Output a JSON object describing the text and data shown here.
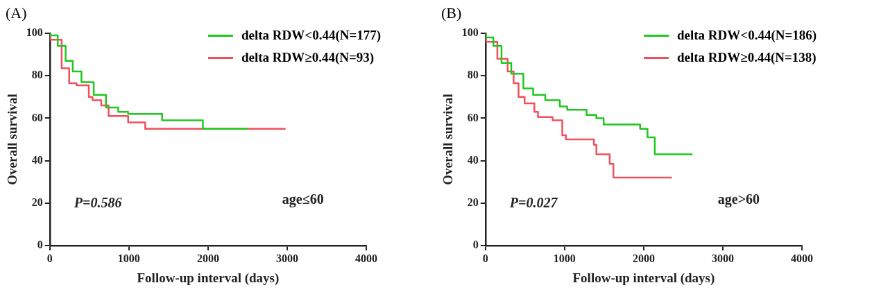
{
  "chart_data": [
    {
      "type": "step",
      "title": "(A)",
      "xlabel": "Follow-up interval (days)",
      "ylabel": "Overall survival",
      "xlim": [
        0,
        4000
      ],
      "xticks": [
        0,
        1000,
        2000,
        3000,
        4000
      ],
      "ylim": [
        0,
        100
      ],
      "yticks": [
        0,
        20,
        40,
        60,
        80,
        100
      ],
      "grid": false,
      "legend": "top right",
      "annotations": [
        "P=0.586",
        "age≤60"
      ],
      "series": [
        {
          "name": "delta RDW<0.44(N=177)",
          "color": "#1ec81e",
          "x": [
            0,
            100,
            200,
            290,
            400,
            555,
            710,
            865,
            990,
            1420,
            1455,
            1935,
            1997,
            2500
          ],
          "values": [
            100,
            99,
            94,
            87,
            82,
            77,
            71,
            65,
            63,
            62,
            59,
            59,
            55,
            55
          ]
        },
        {
          "name": "delta RDW≥0.44(N=93)",
          "color": "#f0505a",
          "x": [
            0,
            150,
            245,
            338,
            493,
            540,
            650,
            743,
            990,
            1206,
            1485,
            2980
          ],
          "values": [
            100,
            97,
            83.5,
            76.5,
            75.5,
            70,
            68.5,
            66,
            61,
            58,
            55,
            55
          ]
        }
      ]
    },
    {
      "type": "step",
      "title": "(B)",
      "xlabel": "Follow-up interval (days)",
      "ylabel": "Overall survival",
      "xlim": [
        0,
        4000
      ],
      "xticks": [
        0,
        1000,
        2000,
        3000,
        4000
      ],
      "ylim": [
        0,
        100
      ],
      "yticks": [
        0,
        20,
        40,
        60,
        80,
        100
      ],
      "grid": false,
      "legend": "top right",
      "annotations": [
        "P=0.027",
        "age>60"
      ],
      "series": [
        {
          "name": "delta RDW<0.44(N=186)",
          "color": "#1ec81e",
          "x": [
            0,
            100,
            203,
            326,
            479,
            602,
            756,
            940,
            1033,
            1278,
            1401,
            1494,
            1955,
            2048,
            2140,
            2340,
            2617
          ],
          "values": [
            100,
            98,
            94,
            86,
            81,
            74,
            71,
            68.5,
            65.5,
            64,
            61.5,
            60,
            57,
            55,
            51,
            43,
            43
          ]
        },
        {
          "name": "delta RDW≥0.44(N=138)",
          "color": "#f0505a",
          "x": [
            0,
            150,
            280,
            356,
            418,
            495,
            618,
            664,
            848,
            971,
            1017,
            1371,
            1402,
            1570,
            1617,
            1970,
            2355
          ],
          "values": [
            100,
            96,
            88,
            82,
            76.5,
            70,
            67,
            63,
            60.5,
            59,
            52,
            50,
            47.5,
            43,
            38.5,
            32,
            32
          ]
        }
      ]
    }
  ]
}
